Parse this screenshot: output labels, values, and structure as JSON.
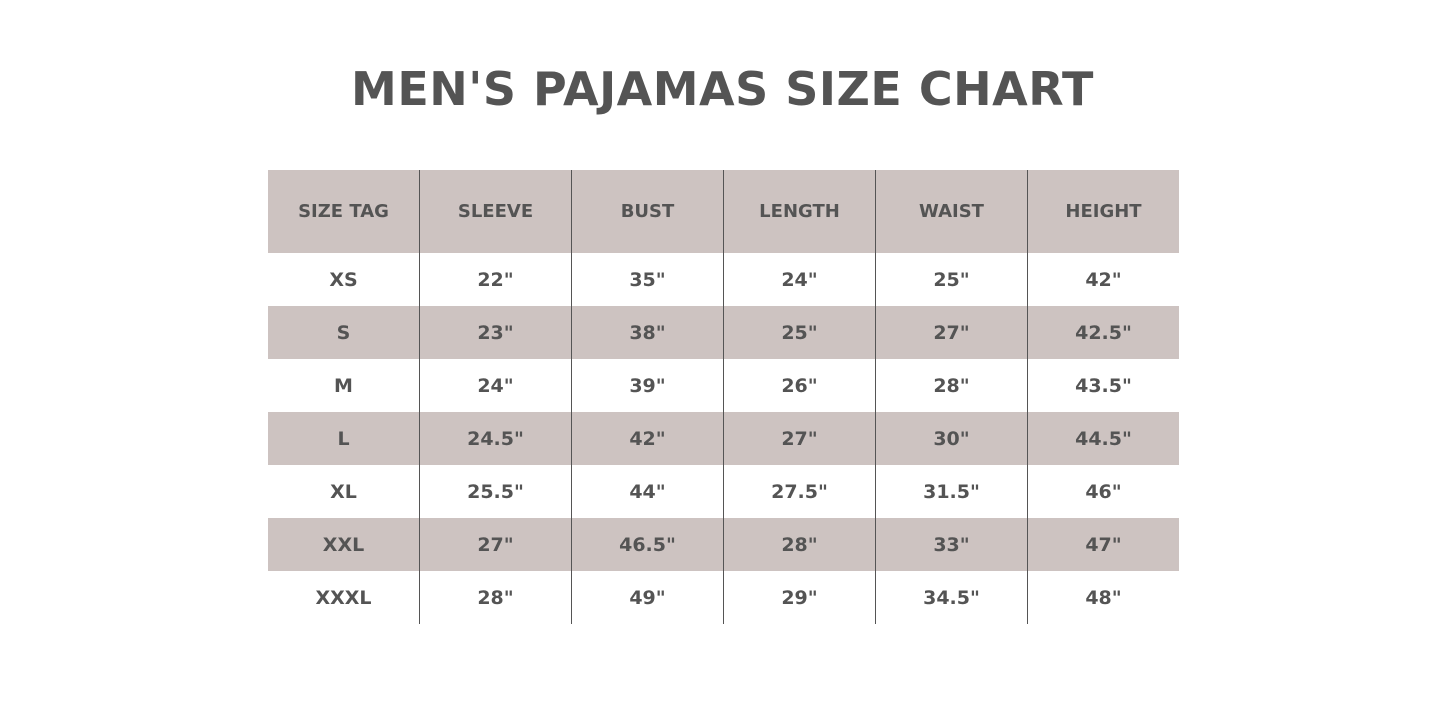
{
  "title": "MEN'S PAJAMAS SIZE CHART",
  "colors": {
    "header_bg": "#cdc3c1",
    "text": "#545454",
    "row_alt_bg": "#cdc3c1"
  },
  "chart_data": {
    "type": "table",
    "title": "MEN'S PAJAMAS SIZE CHART",
    "columns": [
      "SIZE TAG",
      "SLEEVE",
      "BUST",
      "LENGTH",
      "WAIST",
      "HEIGHT"
    ],
    "rows": [
      [
        "XS",
        "22\"",
        "35\"",
        "24\"",
        "25\"",
        "42\""
      ],
      [
        "S",
        "23\"",
        "38\"",
        "25\"",
        "27\"",
        "42.5\""
      ],
      [
        "M",
        "24\"",
        "39\"",
        "26\"",
        "28\"",
        "43.5\""
      ],
      [
        "L",
        "24.5\"",
        "42\"",
        "27\"",
        "30\"",
        "44.5\""
      ],
      [
        "XL",
        "25.5\"",
        "44\"",
        "27.5\"",
        "31.5\"",
        "46\""
      ],
      [
        "XXL",
        "27\"",
        "46.5\"",
        "28\"",
        "33\"",
        "47\""
      ],
      [
        "XXXL",
        "28\"",
        "49\"",
        "29\"",
        "34.5\"",
        "48\""
      ]
    ]
  }
}
